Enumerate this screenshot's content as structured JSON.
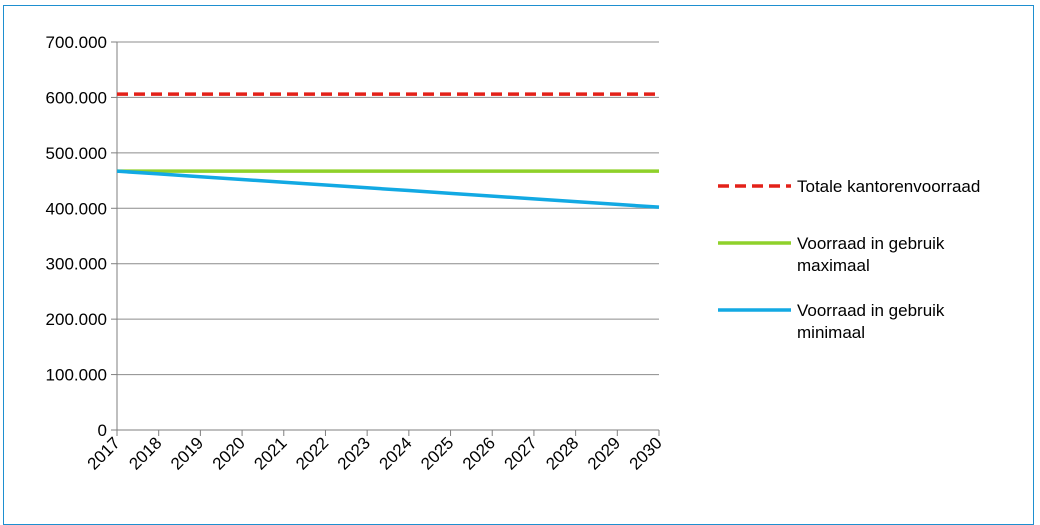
{
  "chart_data": {
    "type": "line",
    "title": "",
    "xlabel": "",
    "ylabel": "",
    "x": [
      "2017",
      "2018",
      "2019",
      "2020",
      "2021",
      "2022",
      "2023",
      "2024",
      "2025",
      "2026",
      "2027",
      "2028",
      "2029",
      "2030"
    ],
    "ylim": [
      0,
      700000
    ],
    "y_ticks": [
      {
        "value": 0,
        "label": "0"
      },
      {
        "value": 100000,
        "label": "100.000"
      },
      {
        "value": 200000,
        "label": "200.000"
      },
      {
        "value": 300000,
        "label": "300.000"
      },
      {
        "value": 400000,
        "label": "400.000"
      },
      {
        "value": 500000,
        "label": "500.000"
      },
      {
        "value": 600000,
        "label": "600.000"
      },
      {
        "value": 700000,
        "label": "700.000"
      }
    ],
    "grid": true,
    "legend_position": "right",
    "series": [
      {
        "name": "Totale kantorenvoorraad",
        "legend_lines": [
          "Totale kantorenvoorraad"
        ],
        "color": "#e32119",
        "dashed": true,
        "values": [
          606000,
          606000,
          606000,
          606000,
          606000,
          606000,
          606000,
          606000,
          606000,
          606000,
          606000,
          606000,
          606000,
          606000
        ]
      },
      {
        "name": "Voorraad in gebruik maximaal",
        "legend_lines": [
          "Voorraad in gebruik",
          "maximaal"
        ],
        "color": "#8fd12a",
        "dashed": false,
        "values": [
          467000,
          467000,
          467000,
          467000,
          467000,
          467000,
          467000,
          467000,
          467000,
          467000,
          467000,
          467000,
          467000,
          467000
        ]
      },
      {
        "name": "Voorraad in gebruik minimaal",
        "legend_lines": [
          "Voorraad in gebruik",
          "minimaal"
        ],
        "color": "#12a9e3",
        "dashed": false,
        "values": [
          467000,
          462000,
          457000,
          452000,
          447000,
          442000,
          437000,
          432000,
          427000,
          422000,
          417000,
          412000,
          407000,
          402000
        ]
      }
    ]
  }
}
